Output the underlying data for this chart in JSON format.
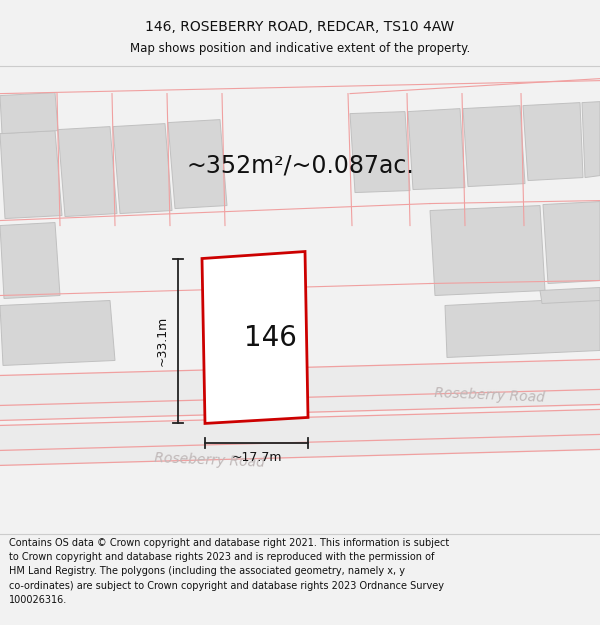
{
  "title": "146, ROSEBERRY ROAD, REDCAR, TS10 4AW",
  "subtitle": "Map shows position and indicative extent of the property.",
  "area_text": "~352m²/~0.087ac.",
  "house_number": "146",
  "dim_width": "~17.7m",
  "dim_height": "~33.1m",
  "road_label1": "Roseberry Road",
  "road_label2": "Roseberry Road",
  "footer_lines": [
    "Contains OS data © Crown copyright and database right 2021. This information is subject",
    "to Crown copyright and database rights 2023 and is reproduced with the permission of",
    "HM Land Registry. The polygons (including the associated geometry, namely x, y",
    "co-ordinates) are subject to Crown copyright and database rights 2023 Ordnance Survey",
    "100026316."
  ],
  "bg_color": "#f2f2f2",
  "map_bg": "#ffffff",
  "plot_outline_color": "#cc0000",
  "plot_fill_color": "#ffffff",
  "building_fill": "#d6d6d6",
  "building_edge": "#c0c0c0",
  "road_line_color": "#f0a0a0",
  "road_fill_color": "#ebebeb",
  "dim_line_color": "#222222",
  "title_color": "#111111",
  "text_color": "#111111",
  "road_text_color": "#c0b8b8",
  "footer_color": "#111111",
  "title_fontsize": 10,
  "subtitle_fontsize": 8.5,
  "area_fontsize": 17,
  "label_fontsize": 20,
  "dim_fontsize": 9,
  "road_fontsize": 10,
  "footer_fontsize": 7
}
